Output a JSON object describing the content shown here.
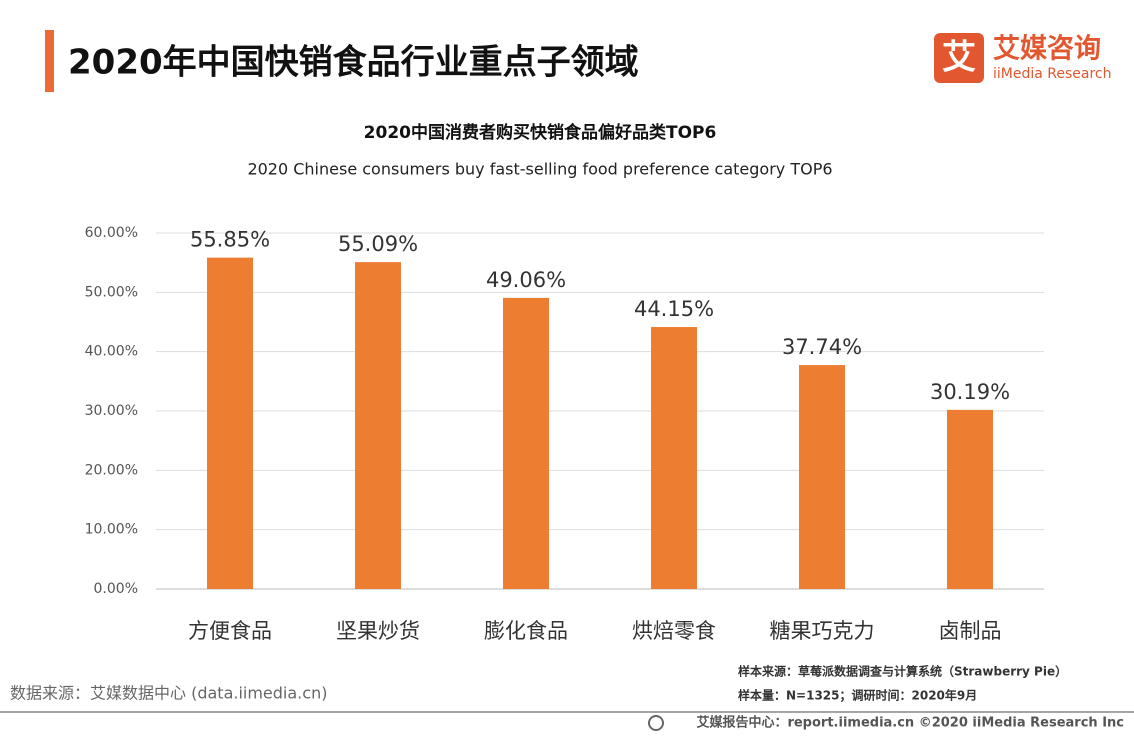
{
  "header": {
    "title": "2020年中国快销食品行业重点子领域"
  },
  "logo": {
    "icon_text": "艾",
    "name": "艾媒咨询",
    "name_en": "iiMedia Research"
  },
  "chart_data": {
    "type": "bar",
    "title": "2020中国消费者购买快销食品偏好品类TOP6",
    "subtitle": "2020 Chinese consumers buy fast-selling food preference category TOP6",
    "categories": [
      "方便食品",
      "坚果炒货",
      "膨化食品",
      "烘焙零食",
      "糖果巧克力",
      "卤制品"
    ],
    "values": [
      55.85,
      55.09,
      49.06,
      44.15,
      37.74,
      30.19
    ],
    "value_labels": [
      "55.85%",
      "55.09%",
      "49.06%",
      "44.15%",
      "37.74%",
      "30.19%"
    ],
    "color": "#ed7d31",
    "ylim": [
      0,
      60
    ],
    "yticks": [
      {
        "value": 0,
        "label": "0.00%"
      },
      {
        "value": 10,
        "label": "10.00%"
      },
      {
        "value": 20,
        "label": "20.00%"
      },
      {
        "value": 30,
        "label": "30.00%"
      },
      {
        "value": 40,
        "label": "40.00%"
      },
      {
        "value": 50,
        "label": "50.00%"
      },
      {
        "value": 60,
        "label": "60.00%"
      }
    ],
    "grid": true
  },
  "footer": {
    "sample_source": "样本来源：草莓派数据调查与计算系统（Strawberry Pie）",
    "sample_size": "样本量：N=1325；调研时间：2020年9月",
    "data_source": "数据来源：艾媒数据中心 (data.iimedia.cn)",
    "copyright": "艾媒报告中心：report.iimedia.cn  ©2020  iiMedia Research  Inc"
  }
}
